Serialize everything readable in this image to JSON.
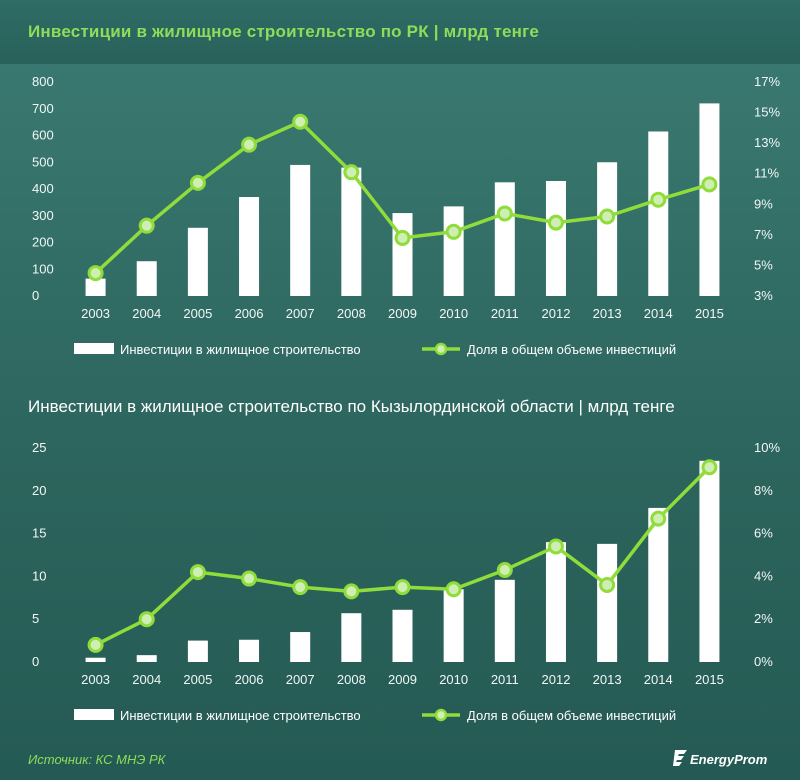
{
  "header": {
    "title": "Инвестиции в жилищное строительство по РК | млрд тенге"
  },
  "colors": {
    "bar": "#ffffff",
    "line": "#8fdc3a",
    "marker_fill": "#cfeeb4",
    "accent_text": "#8fdc5a"
  },
  "chart_data": [
    {
      "type": "bar",
      "title": "Инвестиции в жилищное строительство по РК | млрд тенге",
      "categories": [
        "2003",
        "2004",
        "2005",
        "2006",
        "2007",
        "2008",
        "2009",
        "2010",
        "2011",
        "2012",
        "2013",
        "2014",
        "2015"
      ],
      "y_ticks": [
        "0",
        "100",
        "200",
        "300",
        "400",
        "500",
        "600",
        "700",
        "800"
      ],
      "y2_ticks": [
        "3%",
        "5%",
        "7%",
        "9%",
        "11%",
        "13%",
        "15%",
        "17%"
      ],
      "ylim": [
        0,
        800
      ],
      "y2lim": [
        3,
        17
      ],
      "series": [
        {
          "name": "Инвестиции в жилищное строительство",
          "type": "bar",
          "axis": "left",
          "values": [
            65,
            130,
            255,
            370,
            490,
            480,
            310,
            335,
            425,
            430,
            500,
            615,
            720
          ]
        },
        {
          "name": "Доля в общем объеме инвестиций",
          "type": "line",
          "axis": "right",
          "values": [
            4.5,
            7.6,
            10.4,
            12.9,
            14.4,
            11.1,
            6.8,
            7.2,
            8.4,
            7.8,
            8.2,
            9.3,
            10.3
          ]
        }
      ]
    },
    {
      "type": "bar",
      "title": "Инвестиции в жилищное строительство по Кызылординской области | млрд тенге",
      "categories": [
        "2003",
        "2004",
        "2005",
        "2006",
        "2007",
        "2008",
        "2009",
        "2010",
        "2011",
        "2012",
        "2013",
        "2014",
        "2015"
      ],
      "y_ticks": [
        "0",
        "5",
        "10",
        "15",
        "20",
        "25"
      ],
      "y2_ticks": [
        "0%",
        "2%",
        "4%",
        "6%",
        "8%",
        "10%"
      ],
      "ylim": [
        0,
        25
      ],
      "y2lim": [
        0,
        10
      ],
      "series": [
        {
          "name": "Инвестиции в жилищное строительство",
          "type": "bar",
          "axis": "left",
          "values": [
            0.5,
            0.8,
            2.5,
            2.6,
            3.5,
            5.7,
            6.1,
            8.5,
            9.6,
            14.0,
            13.8,
            18.0,
            23.5
          ]
        },
        {
          "name": "Доля в общем объеме инвестиций",
          "type": "line",
          "axis": "right",
          "values": [
            0.8,
            2.0,
            4.2,
            3.9,
            3.5,
            3.3,
            3.5,
            3.4,
            4.3,
            5.4,
            3.6,
            6.7,
            9.1
          ]
        }
      ]
    }
  ],
  "footer": {
    "source": "Источник: КС МНЭ РК",
    "logo": "EnergyProm"
  }
}
